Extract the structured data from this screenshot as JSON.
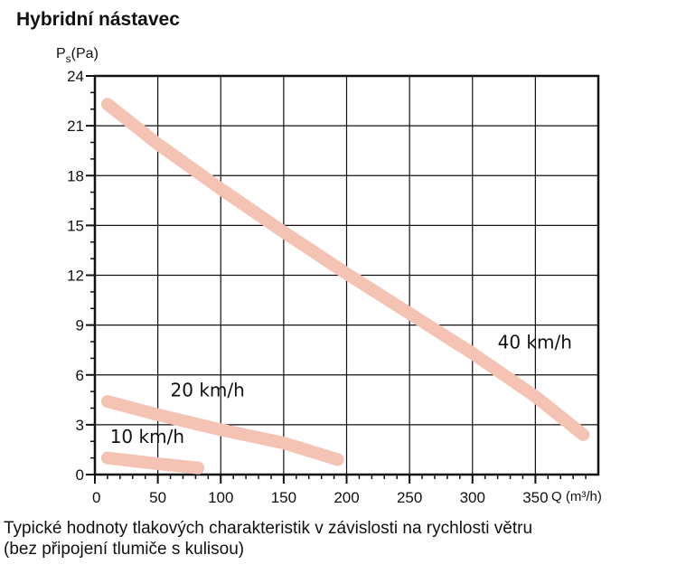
{
  "chart_data": {
    "type": "line",
    "title": "Hybridní nástavec",
    "ylabel": "P",
    "ylabel_sub": "s",
    "ylabel_unit": "(Pa)",
    "xlabel": "Q (m³/h)",
    "xlim": [
      0,
      400
    ],
    "ylim": [
      0,
      24
    ],
    "xticks": [
      0,
      50,
      100,
      150,
      200,
      250,
      300,
      350
    ],
    "yticks": [
      0,
      3,
      6,
      9,
      12,
      15,
      18,
      21,
      24
    ],
    "grid": true,
    "line_color": "#f5c3b3",
    "series": [
      {
        "name": "40 km/h",
        "x": [
          10,
          50,
          100,
          150,
          200,
          250,
          300,
          350,
          388
        ],
        "y": [
          22.3,
          19.9,
          17.2,
          14.6,
          12.1,
          9.7,
          7.3,
          4.7,
          2.4
        ],
        "label_at": [
          320,
          7.6
        ]
      },
      {
        "name": "20 km/h",
        "x": [
          10,
          50,
          100,
          150,
          193
        ],
        "y": [
          4.4,
          3.6,
          2.7,
          1.9,
          0.9
        ],
        "label_at": [
          60,
          4.7
        ]
      },
      {
        "name": "10 km/h",
        "x": [
          10,
          50,
          82
        ],
        "y": [
          1.0,
          0.65,
          0.4
        ],
        "label_at": [
          12,
          1.9
        ]
      }
    ]
  },
  "caption": [
    "Typické hodnoty tlakových charakteristik v závislosti na rychlosti větru",
    "(bez připojení tlumiče s kulisou)"
  ]
}
